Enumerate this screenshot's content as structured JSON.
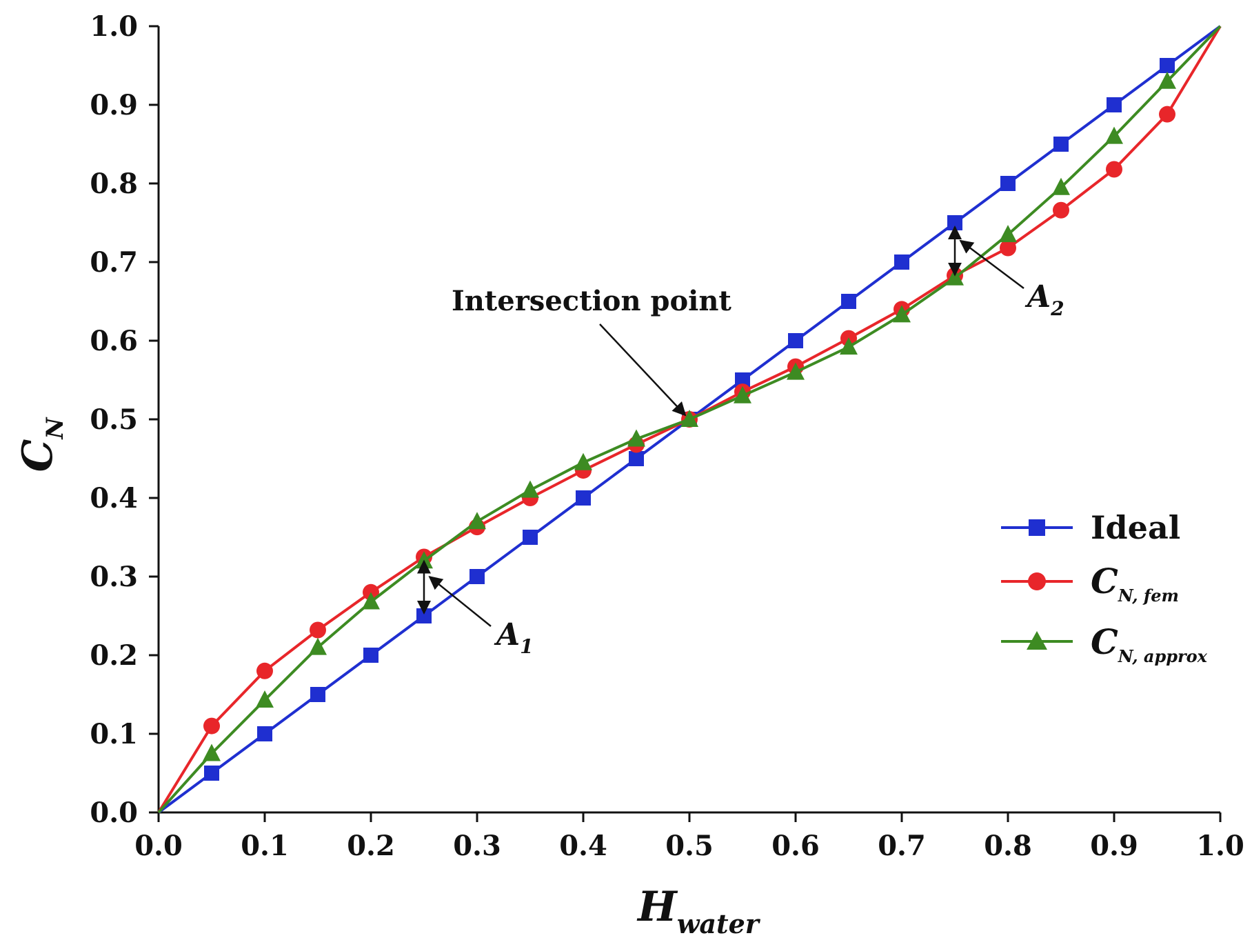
{
  "chart_data": {
    "type": "line",
    "title": "",
    "xlabel": {
      "main": "H",
      "sub": "water"
    },
    "ylabel": {
      "main": "C",
      "sub": "N"
    },
    "xlim": [
      0,
      1
    ],
    "ylim": [
      0,
      1
    ],
    "x_ticks": [
      "0.0",
      "0.1",
      "0.2",
      "0.3",
      "0.4",
      "0.5",
      "0.6",
      "0.7",
      "0.8",
      "0.9",
      "1.0"
    ],
    "y_ticks": [
      "0.0",
      "0.1",
      "0.2",
      "0.3",
      "0.4",
      "0.5",
      "0.6",
      "0.7",
      "0.8",
      "0.9",
      "1.0"
    ],
    "grid": false,
    "legend_position": "right",
    "x": [
      0,
      0.05,
      0.1,
      0.15,
      0.2,
      0.25,
      0.3,
      0.35,
      0.4,
      0.45,
      0.5,
      0.55,
      0.6,
      0.65,
      0.7,
      0.75,
      0.8,
      0.85,
      0.9,
      0.95,
      1.0
    ],
    "series": [
      {
        "name": "Ideal",
        "label_main": "Ideal",
        "label_sub": "",
        "color": "#1f2fd0",
        "marker": "square",
        "values": [
          0,
          0.05,
          0.1,
          0.15,
          0.2,
          0.25,
          0.3,
          0.35,
          0.4,
          0.45,
          0.5,
          0.55,
          0.6,
          0.65,
          0.7,
          0.75,
          0.8,
          0.85,
          0.9,
          0.95,
          1.0
        ]
      },
      {
        "name": "C_N, fem",
        "label_main": "C",
        "label_sub": "N, fem",
        "color": "#e8262a",
        "marker": "circle",
        "values": [
          0,
          0.11,
          0.18,
          0.232,
          0.28,
          0.325,
          0.363,
          0.4,
          0.435,
          0.468,
          0.5,
          0.535,
          0.567,
          0.603,
          0.64,
          0.683,
          0.718,
          0.766,
          0.818,
          0.888,
          1.0
        ]
      },
      {
        "name": "C_N, approx",
        "label_main": "C",
        "label_sub": "N, approx",
        "color": "#3d8b22",
        "marker": "triangle",
        "values": [
          0,
          0.075,
          0.143,
          0.21,
          0.268,
          0.32,
          0.37,
          0.41,
          0.445,
          0.475,
          0.5,
          0.53,
          0.56,
          0.592,
          0.633,
          0.68,
          0.735,
          0.795,
          0.86,
          0.93,
          1.0
        ]
      }
    ],
    "annotations": [
      {
        "id": "intersection",
        "text": "Intersection point",
        "target_x": 0.5,
        "target_y": 0.5
      },
      {
        "id": "a1",
        "text_main": "A",
        "text_sub": "1",
        "gap_x": 0.25,
        "gap_y_low": 0.25,
        "gap_y_high": 0.325
      },
      {
        "id": "a2",
        "text_main": "A",
        "text_sub": "2",
        "gap_x": 0.75,
        "gap_y_low": 0.68,
        "gap_y_high": 0.75
      }
    ]
  }
}
